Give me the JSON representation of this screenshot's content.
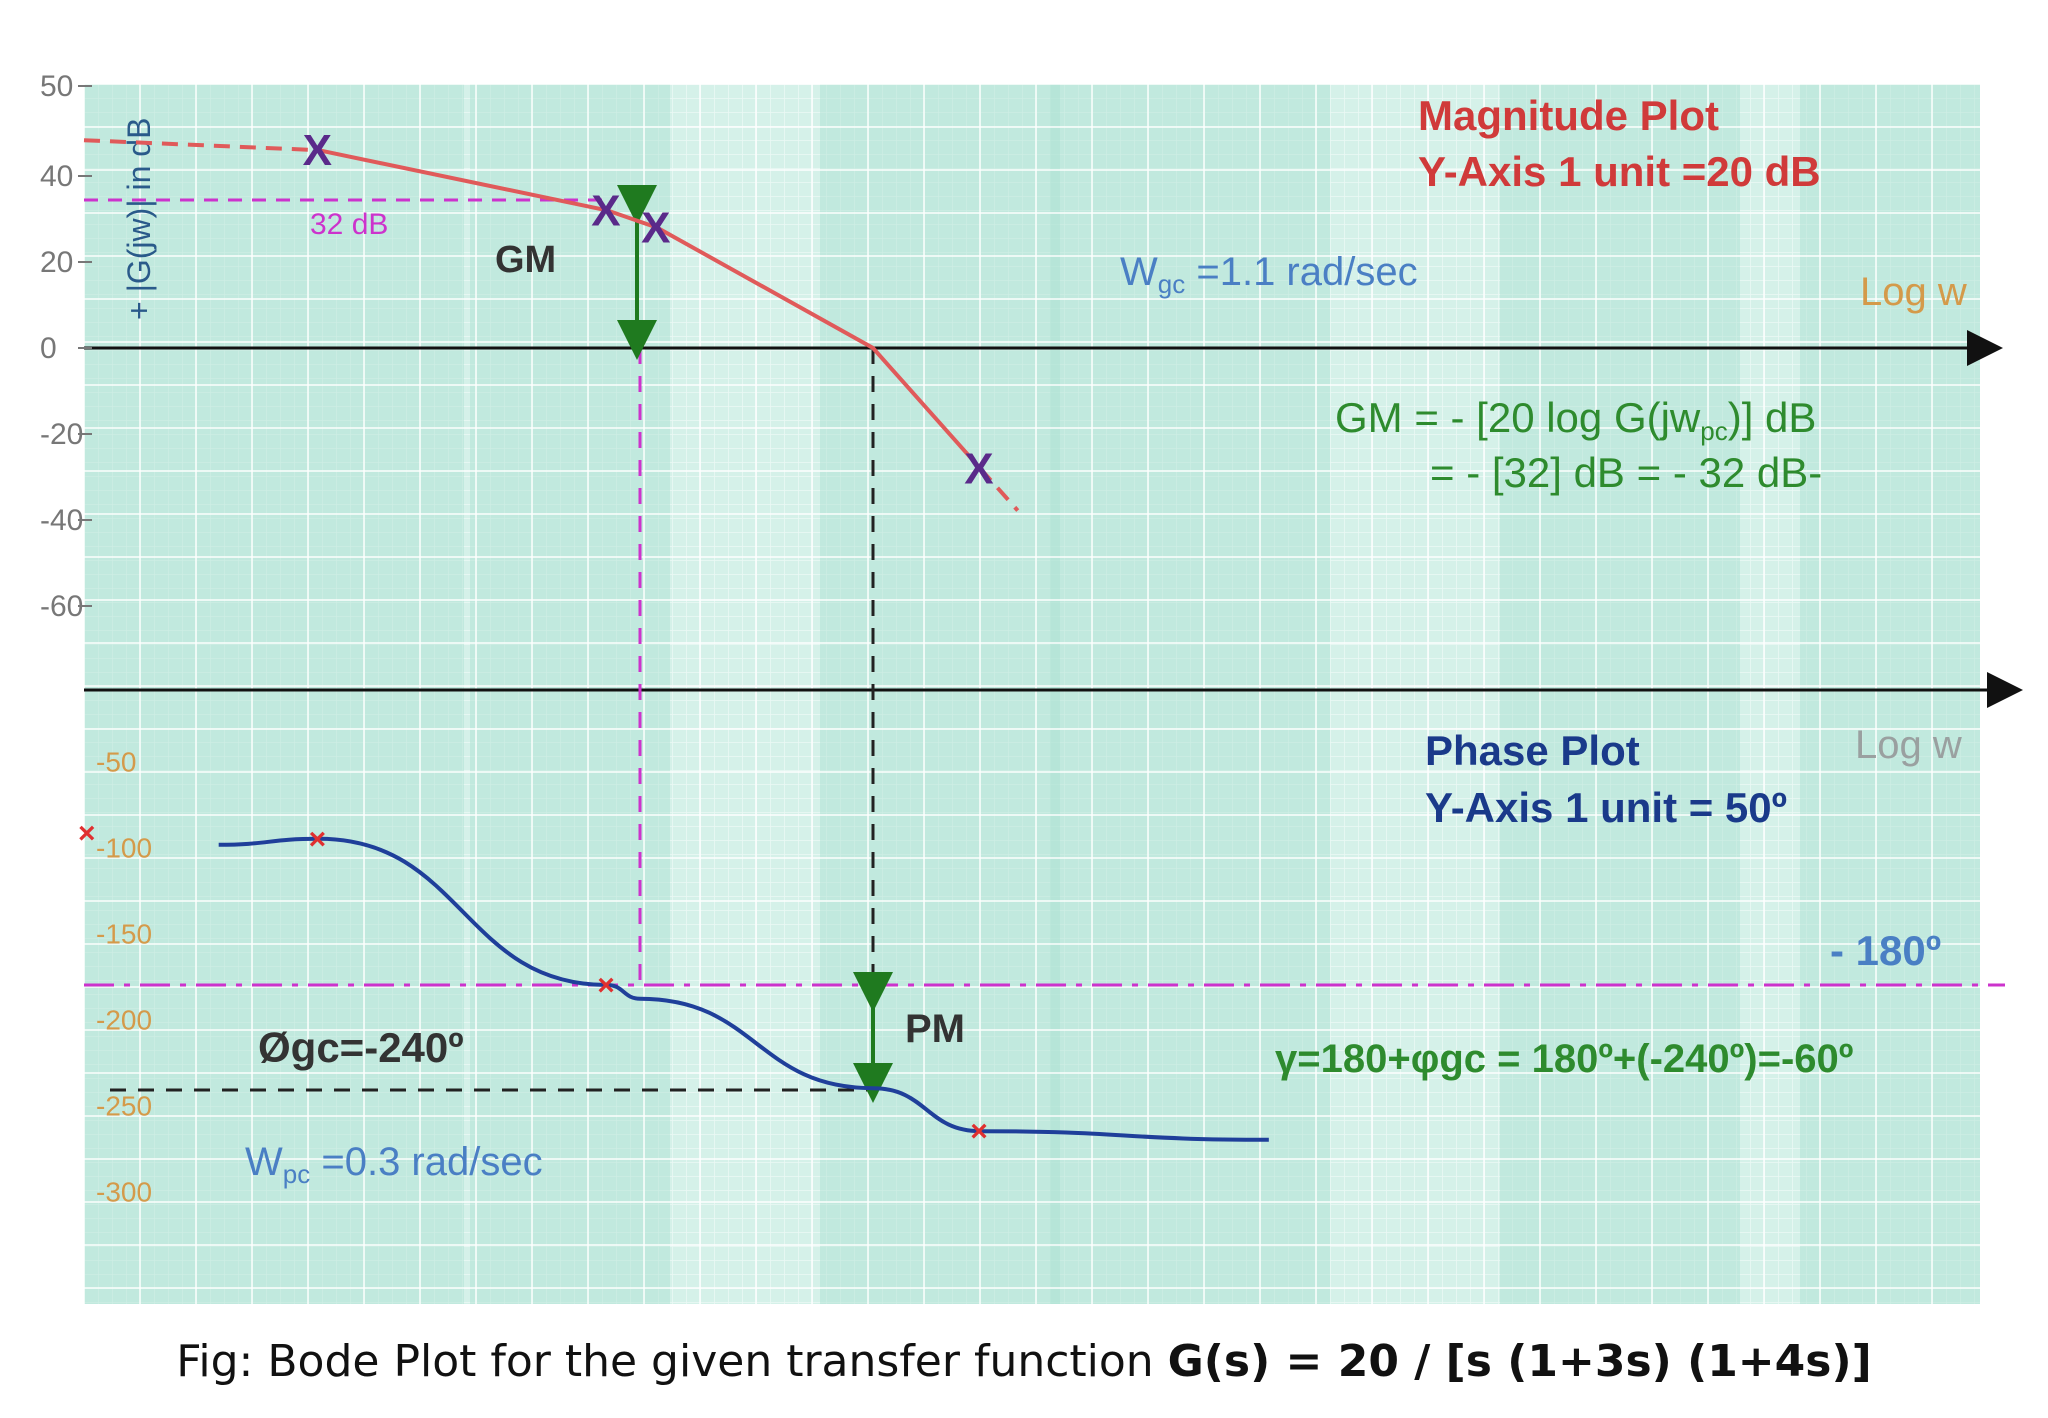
{
  "chart_data": {
    "type": "line",
    "title": "Bode Plot",
    "magnitude": {
      "ylabel": "+ |G(jw)| in dB",
      "xlabel": "Log w",
      "yticks": [
        "50",
        "40",
        "20",
        "0",
        "-20",
        "-40",
        "-60"
      ],
      "title": "Magnitude Plot",
      "scale_note": "Y-Axis 1 unit =20 dB",
      "crossover_label": "W",
      "crossover_sub": "gc",
      "crossover_value": " =1.1 rad/sec",
      "gm_label": "GM",
      "level_label": "32 dB",
      "gm_eq_line1": "GM = - [20 log G(jw",
      "gm_eq_sub": "pc",
      "gm_eq_line1_end": ")] dB",
      "gm_eq_line2": "= - [32] dB = - 32 dB-",
      "series": [
        {
          "points": [
            {
              "x": 0.05,
              "y": 46
            },
            {
              "x": 0.25,
              "y": 32
            },
            {
              "x": 0.33,
              "y": 28
            },
            {
              "x": 1.1,
              "y": 0
            },
            {
              "x": 2.0,
              "y": -28
            }
          ]
        }
      ]
    },
    "phase": {
      "xlabel": "Log w",
      "yticks": [
        "-50",
        "-100",
        "-150",
        "-200",
        "-250",
        "-300"
      ],
      "title": "Phase Plot",
      "scale_note": "Y-Axis 1 unit = 50º",
      "ref_line_label": "- 180º",
      "ref_line_value": -180,
      "pm_label": "PM",
      "phi_gc_label": "Øgc=-240º",
      "pc_label": "W",
      "pc_sub": "pc",
      "pc_value": " =0.3 rad/sec",
      "gamma_eq": "γ=180+φgc = 180º+(-240º)=-60º",
      "series": [
        {
          "points": [
            {
              "x": 0.05,
              "y": -95
            },
            {
              "x": 0.25,
              "y": -180
            },
            {
              "x": 0.3,
              "y": -188
            },
            {
              "x": 1.1,
              "y": -240
            },
            {
              "x": 2.0,
              "y": -265
            },
            {
              "x": 10,
              "y": -270
            }
          ]
        }
      ]
    },
    "colors": {
      "magnitude_line": "#e05a5a",
      "phase_line": "#1f3f9a",
      "gm_arrow": "#1f7a1f",
      "magenta_guides": "#cc33cc",
      "grid_background": "#c7ece2",
      "red_text": "#d03a3a",
      "blue_text": "#4a7fc4",
      "green_text": "#2e8b2e",
      "navy_text": "#1a3a8a",
      "orange_ticks": "#d49a4a"
    }
  },
  "caption": {
    "prefix": "Fig: Bode Plot for the given transfer function ",
    "formula": "G(s) = 20 / [s (1+3s) (1+4s)]"
  }
}
